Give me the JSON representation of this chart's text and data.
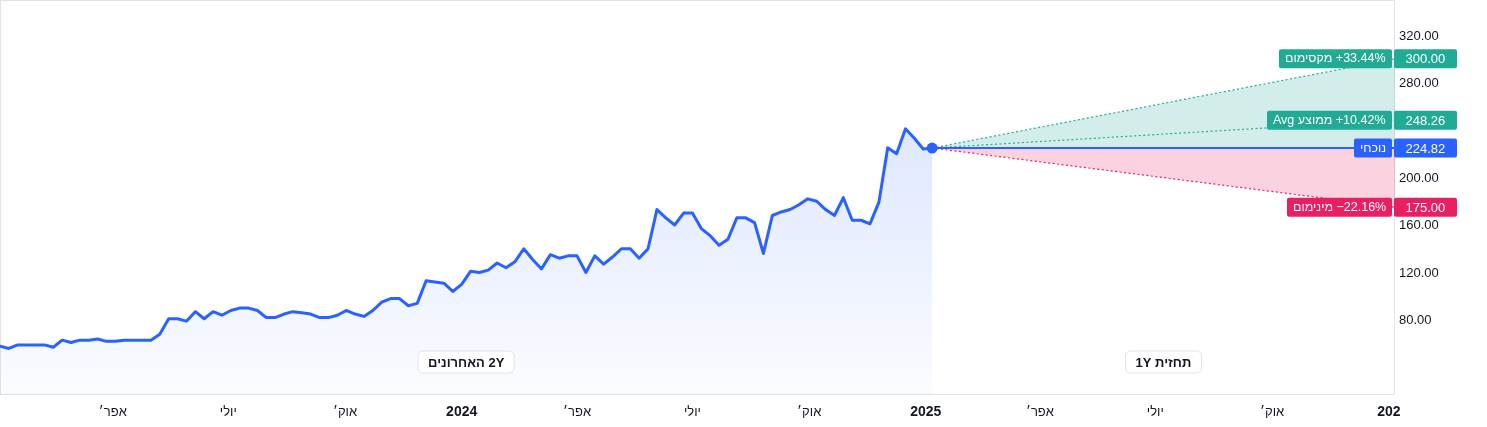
{
  "chart_data": {
    "type": "line",
    "annotations": [
      "2Y האחרונים",
      "תחזית 1Y"
    ],
    "xlim": [
      "2023-01-02",
      "2026-01-06"
    ],
    "ylim": [
      16.8,
      349.5
    ],
    "xticks": [
      {
        "value": "2023-04-01",
        "label": "אפר׳"
      },
      {
        "value": "2023-07-01",
        "label": "יולי"
      },
      {
        "value": "2023-10-01",
        "label": "אוק׳"
      },
      {
        "value": "2024-01-01",
        "label": "2024"
      },
      {
        "value": "2024-04-01",
        "label": "אפר׳"
      },
      {
        "value": "2024-07-01",
        "label": "יולי"
      },
      {
        "value": "2024-10-01",
        "label": "אוק׳"
      },
      {
        "value": "2025-01-01",
        "label": "2025"
      },
      {
        "value": "2025-04-01",
        "label": "אפר׳"
      },
      {
        "value": "2025-07-01",
        "label": "יולי"
      },
      {
        "value": "2025-10-01",
        "label": "אוק׳"
      },
      {
        "value": "2026-01-01",
        "label": "202"
      }
    ],
    "yticks": [
      {
        "value": 80,
        "label": "80.00"
      },
      {
        "value": 120,
        "label": "120.00"
      },
      {
        "value": 160,
        "label": "160.00"
      },
      {
        "value": 200,
        "label": "200.00"
      },
      {
        "value": 280,
        "label": "280.00"
      },
      {
        "value": 320,
        "label": "320.00"
      }
    ],
    "series": [
      {
        "type": "area",
        "color": "#2962ff",
        "x": [
          "2023-01-02",
          "2023-01-09",
          "2023-01-16",
          "2023-01-23",
          "2023-01-30",
          "2023-02-06",
          "2023-02-13",
          "2023-02-20",
          "2023-02-27",
          "2023-03-06",
          "2023-03-13",
          "2023-03-20",
          "2023-03-27",
          "2023-04-03",
          "2023-04-10",
          "2023-04-17",
          "2023-04-24",
          "2023-05-01",
          "2023-05-08",
          "2023-05-15",
          "2023-05-22",
          "2023-05-29",
          "2023-06-05",
          "2023-06-12",
          "2023-06-19",
          "2023-06-26",
          "2023-07-03",
          "2023-07-10",
          "2023-07-17",
          "2023-07-24",
          "2023-07-31",
          "2023-08-07",
          "2023-08-14",
          "2023-08-21",
          "2023-08-28",
          "2023-09-04",
          "2023-09-11",
          "2023-09-18",
          "2023-09-25",
          "2023-10-02",
          "2023-10-09",
          "2023-10-16",
          "2023-10-23",
          "2023-10-30",
          "2023-11-06",
          "2023-11-13",
          "2023-11-20",
          "2023-11-27",
          "2023-12-04",
          "2023-12-11",
          "2023-12-18",
          "2023-12-25",
          "2024-01-01",
          "2024-01-08",
          "2024-01-15",
          "2024-01-22",
          "2024-01-29",
          "2024-02-05",
          "2024-02-12",
          "2024-02-19",
          "2024-02-26",
          "2024-03-04",
          "2024-03-11",
          "2024-03-18",
          "2024-03-25",
          "2024-04-01",
          "2024-04-08",
          "2024-04-15",
          "2024-04-22",
          "2024-04-29",
          "2024-05-06",
          "2024-05-13",
          "2024-05-20",
          "2024-05-27",
          "2024-06-03",
          "2024-06-10",
          "2024-06-17",
          "2024-06-24",
          "2024-07-01",
          "2024-07-08",
          "2024-07-15",
          "2024-07-22",
          "2024-07-29",
          "2024-08-05",
          "2024-08-12",
          "2024-08-19",
          "2024-08-26",
          "2024-09-02",
          "2024-09-09",
          "2024-09-16",
          "2024-09-23",
          "2024-09-30",
          "2024-10-07",
          "2024-10-14",
          "2024-10-21",
          "2024-10-28",
          "2024-11-04",
          "2024-11-11",
          "2024-11-18",
          "2024-11-25",
          "2024-12-02",
          "2024-12-09",
          "2024-12-16",
          "2024-12-23",
          "2024-12-30",
          "2025-01-06"
        ],
        "values": [
          58,
          56,
          59,
          59,
          59,
          59,
          57,
          63,
          61,
          63,
          63,
          64,
          62,
          62,
          63,
          63,
          63,
          63,
          68,
          81,
          81,
          79,
          87,
          81,
          87,
          84,
          88,
          90,
          90,
          88,
          82,
          82,
          85,
          87,
          86,
          85,
          82,
          82,
          84,
          88,
          85,
          83,
          88,
          95,
          98,
          98,
          92,
          94,
          113,
          112,
          111,
          104,
          110,
          121,
          120,
          122,
          128,
          124,
          129,
          140,
          131,
          123,
          135,
          132,
          134,
          134,
          120,
          134,
          127,
          133,
          140,
          140,
          132,
          140,
          173,
          166,
          160,
          170,
          170,
          157,
          151,
          143,
          148,
          166,
          166,
          162,
          136,
          168,
          171,
          173,
          177,
          182,
          180,
          173,
          168,
          183,
          164,
          164,
          161,
          179,
          225,
          220,
          241,
          233,
          224,
          224.82
        ]
      },
      {
        "type": "line",
        "name": "מקסימום +33.44%",
        "color": "#22ab94",
        "line_style": "dotted",
        "x": [
          "2025-01-06",
          "2026-01-06"
        ],
        "values": [
          224.82,
          300
        ],
        "lower": [
          224.82,
          224.82
        ],
        "upper": [
          224.82,
          300
        ],
        "value_labels": [
          null,
          "300.00"
        ]
      },
      {
        "type": "line",
        "name": "Avg ממוצע +10.42%",
        "color": "#22ab94",
        "line_style": "dotted",
        "x": [
          "2025-01-06",
          "2026-01-06"
        ],
        "values": [
          224.82,
          248.26
        ],
        "value_labels": [
          null,
          "248.26"
        ]
      },
      {
        "type": "line",
        "name": "נוכחי",
        "color": "#2962ff",
        "line_style": "solid",
        "x": [
          "2025-01-06",
          "2026-01-06"
        ],
        "values": [
          224.82,
          224.82
        ],
        "value_labels": [
          null,
          "224.82"
        ]
      },
      {
        "type": "line",
        "name": "מינימום −22.16%",
        "color": "#e91e63",
        "line_style": "dotted",
        "x": [
          "2025-01-06",
          "2026-01-06"
        ],
        "values": [
          224.82,
          175
        ],
        "lower": [
          224.82,
          175
        ],
        "upper": [
          224.82,
          224.82
        ],
        "value_labels": [
          null,
          "175.00"
        ]
      },
      {
        "type": "scatter",
        "color": "#2962ff",
        "marker": "circle",
        "x": [
          "2025-01-06"
        ],
        "values": [
          224.82
        ]
      }
    ]
  }
}
